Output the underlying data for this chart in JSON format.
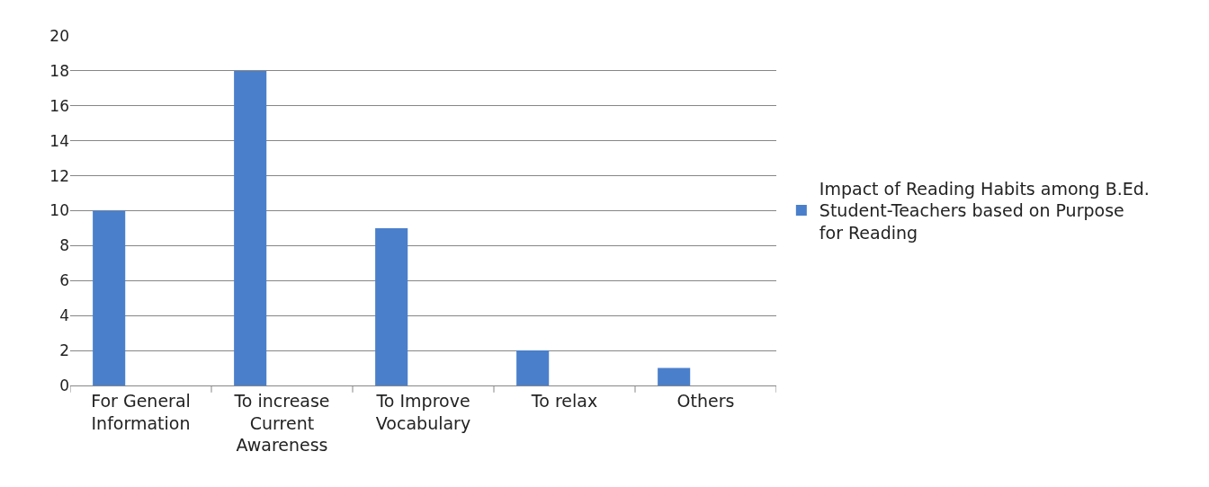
{
  "chart_data": {
    "type": "bar",
    "categories": [
      "For General Information",
      "To increase Current Awareness",
      "To Improve Vocabulary",
      "To relax",
      "Others"
    ],
    "series": [
      {
        "name": "Impact of Reading Habits among B.Ed. Student-Teachers based on Purpose for Reading",
        "color": "#4a7fcb",
        "values": [
          10,
          18,
          9,
          2,
          1
        ]
      }
    ],
    "ylim": [
      0,
      20
    ],
    "yticks": [
      0,
      2,
      4,
      6,
      8,
      10,
      12,
      14,
      16,
      18,
      20
    ],
    "grid": "y",
    "legend": "right"
  }
}
